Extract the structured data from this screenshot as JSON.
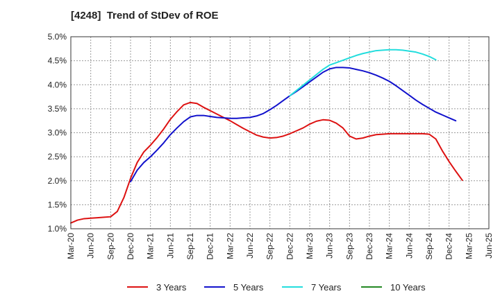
{
  "chart_data": {
    "type": "line",
    "title": "[4248]  Trend of StDev of ROE",
    "xlabel": "",
    "ylabel": "",
    "x_ticks": [
      "Mar-20",
      "Jun-20",
      "Sep-20",
      "Dec-20",
      "Mar-21",
      "Jun-21",
      "Sep-21",
      "Dec-21",
      "Mar-22",
      "Jun-22",
      "Sep-22",
      "Dec-22",
      "Mar-23",
      "Jun-23",
      "Sep-23",
      "Dec-23",
      "Mar-24",
      "Jun-24",
      "Sep-24",
      "Dec-24",
      "Mar-25",
      "Jun-25"
    ],
    "y_ticks": [
      "1.0%",
      "1.5%",
      "2.0%",
      "2.5%",
      "3.0%",
      "3.5%",
      "4.0%",
      "4.5%",
      "5.0%"
    ],
    "ylim": [
      1.0,
      5.0
    ],
    "grid": true,
    "legend_position": "bottom",
    "series": [
      {
        "name": "3 Years",
        "color": "#dd1111",
        "points": [
          [
            0,
            1.12
          ],
          [
            1,
            1.18
          ],
          [
            2,
            1.21
          ],
          [
            3,
            1.22
          ],
          [
            4,
            1.23
          ],
          [
            5,
            1.24
          ],
          [
            6,
            1.25
          ],
          [
            7,
            1.36
          ],
          [
            8,
            1.65
          ],
          [
            9,
            2.05
          ],
          [
            10,
            2.38
          ],
          [
            11,
            2.6
          ],
          [
            12,
            2.74
          ],
          [
            13,
            2.9
          ],
          [
            14,
            3.08
          ],
          [
            15,
            3.28
          ],
          [
            16,
            3.44
          ],
          [
            17,
            3.58
          ],
          [
            18,
            3.63
          ],
          [
            19,
            3.61
          ],
          [
            20,
            3.53
          ],
          [
            21,
            3.46
          ],
          [
            22,
            3.39
          ],
          [
            23,
            3.32
          ],
          [
            24,
            3.25
          ],
          [
            25,
            3.17
          ],
          [
            26,
            3.09
          ],
          [
            27,
            3.02
          ],
          [
            28,
            2.95
          ],
          [
            29,
            2.91
          ],
          [
            30,
            2.89
          ],
          [
            31,
            2.9
          ],
          [
            32,
            2.93
          ],
          [
            33,
            2.98
          ],
          [
            34,
            3.04
          ],
          [
            35,
            3.1
          ],
          [
            36,
            3.18
          ],
          [
            37,
            3.24
          ],
          [
            38,
            3.27
          ],
          [
            39,
            3.26
          ],
          [
            40,
            3.2
          ],
          [
            41,
            3.1
          ],
          [
            42,
            2.93
          ],
          [
            43,
            2.87
          ],
          [
            44,
            2.89
          ],
          [
            45,
            2.93
          ],
          [
            46,
            2.96
          ],
          [
            47,
            2.97
          ],
          [
            48,
            2.98
          ],
          [
            49,
            2.98
          ],
          [
            50,
            2.98
          ],
          [
            51,
            2.98
          ],
          [
            52,
            2.98
          ],
          [
            53,
            2.98
          ],
          [
            54,
            2.97
          ],
          [
            55,
            2.87
          ],
          [
            56,
            2.62
          ],
          [
            57,
            2.4
          ],
          [
            58,
            2.2
          ],
          [
            59,
            2.01
          ]
        ]
      },
      {
        "name": "5 Years",
        "color": "#1111cc",
        "points": [
          [
            9,
            1.98
          ],
          [
            10,
            2.22
          ],
          [
            11,
            2.38
          ],
          [
            12,
            2.5
          ],
          [
            13,
            2.64
          ],
          [
            14,
            2.79
          ],
          [
            15,
            2.96
          ],
          [
            16,
            3.1
          ],
          [
            17,
            3.23
          ],
          [
            18,
            3.33
          ],
          [
            19,
            3.36
          ],
          [
            20,
            3.36
          ],
          [
            21,
            3.34
          ],
          [
            22,
            3.32
          ],
          [
            23,
            3.31
          ],
          [
            24,
            3.3
          ],
          [
            25,
            3.3
          ],
          [
            26,
            3.31
          ],
          [
            27,
            3.32
          ],
          [
            28,
            3.35
          ],
          [
            29,
            3.4
          ],
          [
            30,
            3.48
          ],
          [
            31,
            3.57
          ],
          [
            32,
            3.67
          ],
          [
            33,
            3.77
          ],
          [
            34,
            3.86
          ],
          [
            35,
            3.96
          ],
          [
            36,
            4.06
          ],
          [
            37,
            4.16
          ],
          [
            38,
            4.26
          ],
          [
            39,
            4.33
          ],
          [
            40,
            4.36
          ],
          [
            41,
            4.36
          ],
          [
            42,
            4.35
          ],
          [
            43,
            4.32
          ],
          [
            44,
            4.29
          ],
          [
            45,
            4.25
          ],
          [
            46,
            4.2
          ],
          [
            47,
            4.14
          ],
          [
            48,
            4.07
          ],
          [
            49,
            3.98
          ],
          [
            50,
            3.88
          ],
          [
            51,
            3.78
          ],
          [
            52,
            3.68
          ],
          [
            53,
            3.59
          ],
          [
            54,
            3.51
          ],
          [
            55,
            3.43
          ],
          [
            56,
            3.37
          ],
          [
            57,
            3.31
          ],
          [
            58,
            3.25
          ]
        ]
      },
      {
        "name": "7 Years",
        "color": "#22dddd",
        "points": [
          [
            33,
            3.77
          ],
          [
            34,
            3.88
          ],
          [
            35,
            3.99
          ],
          [
            36,
            4.1
          ],
          [
            37,
            4.21
          ],
          [
            38,
            4.32
          ],
          [
            39,
            4.41
          ],
          [
            40,
            4.46
          ],
          [
            41,
            4.51
          ],
          [
            42,
            4.56
          ],
          [
            43,
            4.61
          ],
          [
            44,
            4.65
          ],
          [
            45,
            4.68
          ],
          [
            46,
            4.71
          ],
          [
            47,
            4.72
          ],
          [
            48,
            4.73
          ],
          [
            49,
            4.73
          ],
          [
            50,
            4.72
          ],
          [
            51,
            4.7
          ],
          [
            52,
            4.68
          ],
          [
            53,
            4.64
          ],
          [
            54,
            4.59
          ],
          [
            55,
            4.52
          ]
        ]
      },
      {
        "name": "10 Years",
        "color": "#228822",
        "points": []
      }
    ]
  }
}
